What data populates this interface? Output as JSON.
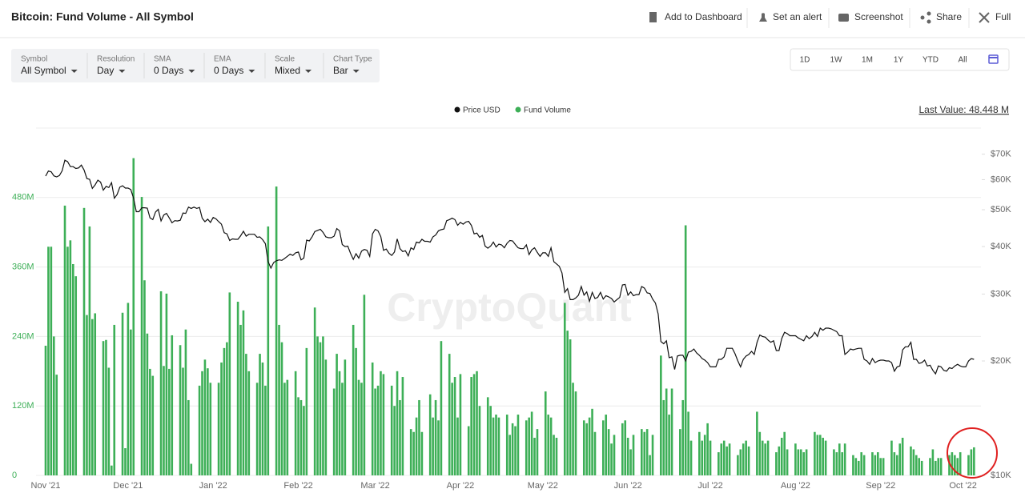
{
  "page": {
    "title": "Bitcoin: Fund Volume - All Symbol",
    "actions": [
      "Add to Dashboard",
      "Set an alert",
      "Screenshot",
      "Share",
      "Full"
    ],
    "controls": [
      {
        "label": "Symbol",
        "value": "All Symbol"
      },
      {
        "label": "Resolution",
        "value": "Day"
      },
      {
        "label": "SMA",
        "value": "0 Days"
      },
      {
        "label": "EMA",
        "value": "0 Days"
      },
      {
        "label": "Scale",
        "value": "Mixed"
      },
      {
        "label": "Chart Type",
        "value": "Bar"
      }
    ],
    "ranges": [
      "1D",
      "1W",
      "1M",
      "1Y",
      "YTD",
      "All"
    ]
  },
  "chart_data": {
    "type": "bar",
    "annotation": "Last Value: 48.448 M",
    "watermark": "CryptoQuant",
    "categories": [
      "Nov '21",
      null,
      null,
      null,
      null,
      null,
      null,
      null,
      null,
      null,
      null,
      null,
      null,
      null,
      null,
      null,
      null,
      null,
      null,
      null,
      null,
      null,
      null,
      null,
      null,
      null,
      null,
      null,
      null,
      null,
      "Dec '21",
      null,
      null,
      null,
      null,
      null,
      null,
      null,
      null,
      null,
      null,
      null,
      null,
      null,
      null,
      null,
      null,
      null,
      null,
      null,
      null,
      null,
      null,
      null,
      null,
      null,
      null,
      null,
      null,
      null,
      null,
      "Jan '22",
      null,
      null,
      null,
      null,
      null,
      null,
      null,
      null,
      null,
      null,
      null,
      null,
      null,
      null,
      null,
      null,
      null,
      null,
      null,
      null,
      null,
      null,
      null,
      null,
      null,
      null,
      null,
      null,
      null,
      null,
      "Feb '22",
      null,
      null,
      null,
      null,
      null,
      null,
      null,
      null,
      null,
      null,
      null,
      null,
      null,
      null,
      null,
      null,
      null,
      null,
      null,
      null,
      null,
      null,
      null,
      null,
      null,
      null,
      null,
      "Mar '22",
      null,
      null,
      null,
      null,
      null,
      null,
      null,
      null,
      null,
      null,
      null,
      null,
      null,
      null,
      null,
      null,
      null,
      null,
      null,
      null,
      null,
      null,
      null,
      null,
      null,
      null,
      null,
      null,
      null,
      null,
      "Apr '22",
      null,
      null,
      null,
      null,
      null,
      null,
      null,
      null,
      null,
      null,
      null,
      null,
      null,
      null,
      null,
      null,
      null,
      null,
      null,
      null,
      null,
      null,
      null,
      null,
      null,
      null,
      null,
      null,
      null,
      "May '22",
      null,
      null,
      null,
      null,
      null,
      null,
      null,
      null,
      null,
      null,
      null,
      null,
      null,
      null,
      null,
      null,
      null,
      null,
      null,
      null,
      null,
      null,
      null,
      null,
      null,
      null,
      null,
      null,
      null,
      null,
      "Jun '22",
      null,
      null,
      null,
      null,
      null,
      null,
      null,
      null,
      null,
      null,
      null,
      null,
      null,
      null,
      null,
      null,
      null,
      null,
      null,
      null,
      null,
      null,
      null,
      null,
      null,
      null,
      null,
      null,
      null,
      "Jul '22",
      null,
      null,
      null,
      null,
      null,
      null,
      null,
      null,
      null,
      null,
      null,
      null,
      null,
      null,
      null,
      null,
      null,
      null,
      null,
      null,
      null,
      null,
      null,
      null,
      null,
      null,
      null,
      null,
      null,
      null,
      "Aug '22",
      null,
      null,
      null,
      null,
      null,
      null,
      null,
      null,
      null,
      null,
      null,
      null,
      null,
      null,
      null,
      null,
      null,
      null,
      null,
      null,
      null,
      null,
      null,
      null,
      null,
      null,
      null,
      null,
      null,
      null,
      "Sep '22",
      null,
      null,
      null,
      null,
      null,
      null,
      null,
      null,
      null,
      null,
      null,
      null,
      null,
      null,
      null,
      null,
      null,
      null,
      null,
      null,
      null,
      null,
      null,
      null,
      null,
      null,
      null,
      null,
      null,
      "Oct '22",
      null,
      null,
      null,
      null
    ],
    "series": [
      {
        "name": "Price USD",
        "type": "line",
        "axis": "y2",
        "color": "#111111",
        "values": [
          61300,
          63200,
          62900,
          61400,
          61000,
          61500,
          63300,
          67500,
          66900,
          64900,
          64900,
          64200,
          64400,
          65500,
          63600,
          60400,
          60100,
          56900,
          58100,
          59800,
          59100,
          56300,
          57600,
          57200,
          58900,
          53600,
          54800,
          57300,
          57800,
          57000,
          57000,
          56500,
          53600,
          49400,
          49400,
          50600,
          50600,
          50500,
          47600,
          47100,
          49300,
          50100,
          46700,
          48400,
          48900,
          47600,
          46200,
          46800,
          46700,
          46900,
          49000,
          48900,
          50800,
          50400,
          50800,
          50400,
          50700,
          47500,
          46500,
          47200,
          46300,
          47700,
          47300,
          46500,
          45800,
          43500,
          43200,
          41500,
          41900,
          41800,
          41800,
          42700,
          43900,
          42600,
          43100,
          43100,
          43100,
          42300,
          42400,
          41700,
          40700,
          36500,
          35100,
          36300,
          36700,
          36900,
          36800,
          37200,
          37700,
          38200,
          37900,
          38500,
          38700,
          36900,
          37300,
          41600,
          41400,
          42400,
          43800,
          44100,
          44400,
          43600,
          42400,
          42200,
          42200,
          42600,
          44600,
          44000,
          40500,
          40000,
          40100,
          38400,
          37000,
          38300,
          37300,
          38900,
          39300,
          39100,
          37700,
          43200,
          44400,
          44000,
          42500,
          39100,
          39400,
          38400,
          37900,
          38700,
          41900,
          39500,
          38800,
          39000,
          37800,
          39700,
          39300,
          41100,
          40900,
          41800,
          41300,
          41300,
          41100,
          42400,
          42900,
          44000,
          44300,
          44500,
          46800,
          47100,
          47500,
          47100,
          45500,
          46300,
          45800,
          46400,
          46600,
          45500,
          43200,
          43400,
          42300,
          42800,
          40100,
          39600,
          40100,
          41100,
          39900,
          40600,
          40400,
          39700,
          40800,
          41500,
          41400,
          40500,
          39700,
          39500,
          39500,
          40400,
          38100,
          39200,
          39700,
          38600,
          37700,
          38500,
          38500,
          37700,
          39700,
          36500,
          36000,
          35500,
          34100,
          30300,
          31000,
          29000,
          29000,
          29300,
          29800,
          31400,
          29800,
          30400,
          28700,
          30300,
          29200,
          29400,
          30300,
          29100,
          29700,
          29500,
          29200,
          28600,
          29000,
          29400,
          31700,
          31800,
          29800,
          30400,
          29700,
          29900,
          29900,
          31400,
          31100,
          30200,
          30100,
          29100,
          28400,
          26600,
          22500,
          22200,
          22600,
          20400,
          20500,
          19000,
          20600,
          20700,
          20700,
          20000,
          21100,
          21200,
          21500,
          21000,
          20700,
          20300,
          20100,
          19800,
          19300,
          19300,
          19300,
          20200,
          20200,
          20500,
          21600,
          21600,
          21600,
          20900,
          20000,
          19300,
          20200,
          20600,
          20800,
          21200,
          20800,
          22400,
          23400,
          23200,
          23100,
          22700,
          22400,
          22600,
          21300,
          21300,
          22900,
          23800,
          23600,
          23300,
          23300,
          23300,
          23000,
          22800,
          22600,
          23300,
          22900,
          23200,
          23800,
          23200,
          24400,
          24100,
          24400,
          24400,
          24300,
          24100,
          23900,
          23300,
          23300,
          20800,
          21100,
          21500,
          21400,
          21500,
          21600,
          21600,
          20200,
          20000,
          19600,
          20300,
          19800,
          20000,
          20100,
          20100,
          20000,
          20000,
          19800,
          18800,
          19300,
          19400,
          21400,
          21800,
          21800,
          22400,
          20200,
          20200,
          19700,
          19800,
          20100,
          19400,
          19500,
          18900,
          18500,
          19400,
          19300,
          18900,
          18800,
          19200,
          19100,
          19400,
          19600,
          19400,
          19300,
          19300,
          20000,
          20300,
          20200
        ]
      },
      {
        "name": "Fund Volume",
        "type": "bar",
        "axis": "y",
        "color": "#3daf57",
        "values": [
          224,
          395,
          395,
          240,
          174,
          null,
          null,
          466,
          395,
          406,
          365,
          344,
          null,
          null,
          462,
          277,
          430,
          270,
          280,
          null,
          null,
          232,
          234,
          186,
          17,
          260,
          null,
          null,
          281,
          47,
          298,
          252,
          548,
          null,
          null,
          481,
          337,
          245,
          184,
          172,
          null,
          null,
          318,
          189,
          314,
          184,
          242,
          null,
          null,
          225,
          186,
          252,
          130,
          20,
          null,
          null,
          155,
          180,
          200,
          185,
          160,
          null,
          null,
          160,
          195,
          220,
          230,
          316,
          null,
          null,
          300,
          260,
          285,
          210,
          180,
          null,
          null,
          160,
          210,
          195,
          155,
          430,
          null,
          null,
          499,
          260,
          230,
          160,
          165,
          null,
          null,
          180,
          135,
          130,
          120,
          220,
          null,
          null,
          290,
          240,
          230,
          240,
          200,
          null,
          null,
          150,
          210,
          180,
          160,
          200,
          null,
          null,
          260,
          220,
          165,
          160,
          312,
          null,
          null,
          195,
          150,
          155,
          180,
          175,
          null,
          null,
          155,
          120,
          180,
          130,
          170,
          null,
          null,
          80,
          75,
          100,
          130,
          75,
          null,
          null,
          140,
          100,
          130,
          95,
          232,
          null,
          null,
          210,
          160,
          170,
          100,
          175,
          null,
          null,
          85,
          170,
          175,
          180,
          120,
          null,
          null,
          135,
          120,
          100,
          105,
          100,
          null,
          null,
          105,
          70,
          90,
          85,
          105,
          null,
          null,
          95,
          100,
          110,
          65,
          80,
          null,
          null,
          145,
          105,
          100,
          70,
          65,
          null,
          null,
          298,
          250,
          235,
          160,
          145,
          null,
          null,
          95,
          90,
          100,
          115,
          75,
          null,
          null,
          95,
          105,
          80,
          55,
          70,
          null,
          null,
          90,
          95,
          65,
          45,
          70,
          null,
          null,
          80,
          75,
          80,
          35,
          70,
          null,
          null,
          207,
          130,
          150,
          105,
          150,
          null,
          null,
          80,
          130,
          432,
          110,
          60,
          null,
          null,
          75,
          60,
          70,
          90,
          60,
          null,
          null,
          40,
          55,
          60,
          50,
          55,
          null,
          null,
          35,
          45,
          55,
          60,
          50,
          null,
          null,
          110,
          75,
          60,
          55,
          60,
          null,
          null,
          40,
          50,
          65,
          75,
          45,
          null,
          null,
          55,
          45,
          45,
          40,
          45,
          null,
          null,
          75,
          70,
          70,
          65,
          60,
          null,
          null,
          45,
          40,
          55,
          40,
          55,
          null,
          null,
          35,
          30,
          25,
          40,
          35,
          null,
          null,
          40,
          35,
          40,
          30,
          30,
          null,
          null,
          60,
          40,
          35,
          55,
          65,
          null,
          null,
          50,
          45,
          35,
          30,
          25,
          null,
          null,
          30,
          45,
          25,
          30,
          30,
          null,
          null,
          35,
          40,
          35,
          30,
          40,
          null,
          null,
          35,
          45,
          48.448
        ]
      }
    ],
    "ylim": [
      0,
      600
    ],
    "yticks": [
      0,
      {
        "value": 120,
        "label": "120M"
      },
      {
        "value": 240,
        "label": "240M"
      },
      {
        "value": 360,
        "label": "360M"
      },
      {
        "value": 480,
        "label": "480M"
      }
    ],
    "y2lim": [
      10000,
      82000
    ],
    "y2_log": true,
    "y2ticks": [
      {
        "value": 10000,
        "label": "$10K"
      },
      {
        "value": 20000,
        "label": "$20K"
      },
      {
        "value": 30000,
        "label": "$30K"
      },
      {
        "value": 40000,
        "label": "$40K"
      },
      {
        "value": 50000,
        "label": "$50K"
      },
      {
        "value": 60000,
        "label": "$60K"
      },
      {
        "value": 70000,
        "label": "$70K"
      }
    ],
    "grid": true
  }
}
